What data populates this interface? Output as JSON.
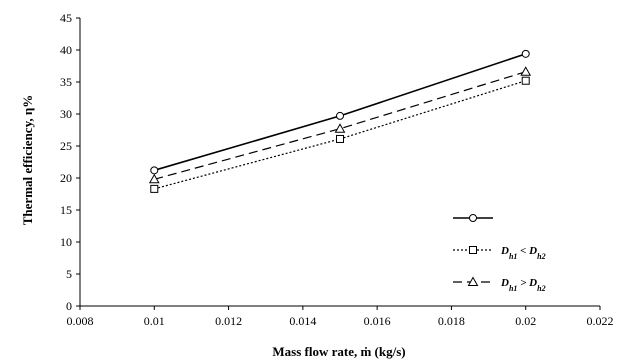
{
  "chart_data": {
    "type": "line",
    "xlabel": "Mass flow rate, ṁ (kg/s)",
    "ylabel": "Thermal efficiency, η%",
    "xlim": [
      0.008,
      0.022
    ],
    "ylim": [
      0,
      45
    ],
    "xticks": [
      "0.008",
      "0.01",
      "0.012",
      "0.014",
      "0.016",
      "0.018",
      "0.02",
      "0.022"
    ],
    "yticks": [
      "0",
      "5",
      "10",
      "15",
      "20",
      "25",
      "30",
      "35",
      "40",
      "45"
    ],
    "grid": false,
    "legend_position": "bottom-right",
    "x": [
      0.01,
      0.015,
      0.02
    ],
    "series": [
      {
        "label_parts": [],
        "values": [
          21.2,
          29.7,
          39.4
        ],
        "marker": "circle",
        "dash": "solid",
        "color": "#000000"
      },
      {
        "name": "Dh1 < Dh2",
        "label_parts": [
          {
            "text": "D",
            "sub": false
          },
          {
            "text": "h1",
            "sub": true
          },
          {
            "text": " < D",
            "sub": false
          },
          {
            "text": "h2",
            "sub": true
          }
        ],
        "values": [
          18.3,
          26.1,
          35.2
        ],
        "marker": "square",
        "dash": "dotted",
        "color": "#000000"
      },
      {
        "name": "Dh1 > Dh2",
        "label_parts": [
          {
            "text": "D",
            "sub": false
          },
          {
            "text": "h1",
            "sub": true
          },
          {
            "text": " > D",
            "sub": false
          },
          {
            "text": "h2",
            "sub": true
          }
        ],
        "values": [
          19.8,
          27.7,
          36.6
        ],
        "marker": "triangle",
        "dash": "dashed",
        "color": "#000000"
      }
    ]
  }
}
